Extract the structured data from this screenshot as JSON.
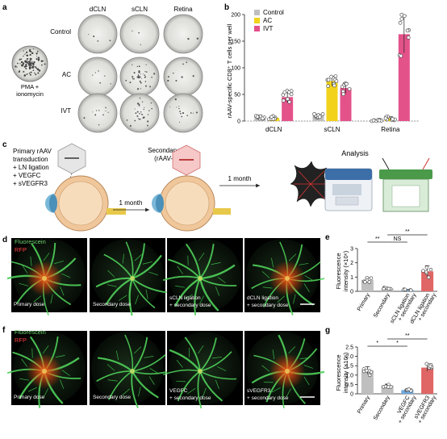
{
  "panel_labels": {
    "a": "a",
    "b": "b",
    "c": "c",
    "d": "d",
    "e": "e",
    "f": "f",
    "g": "g"
  },
  "panel_a": {
    "columns": [
      "dCLN",
      "sCLN",
      "Retina"
    ],
    "rows": [
      "Control",
      "AC",
      "IVT"
    ],
    "control_caption": [
      "PMA +",
      "ionomycin"
    ]
  },
  "chart_b": {
    "type": "bar",
    "ylabel": "rAAV-specific CD8⁺ T cells per well",
    "yticks": [
      "0",
      "50",
      "100",
      "150",
      "200"
    ],
    "ylim": [
      0,
      200
    ],
    "groups": [
      "dCLN",
      "sCLN",
      "Retina"
    ],
    "legend": [
      {
        "name": "Control",
        "color": "#bfbfbf"
      },
      {
        "name": "AC",
        "color": "#f2d21b"
      },
      {
        "name": "IVT",
        "color": "#e4528a"
      }
    ],
    "series": [
      {
        "name": "Control",
        "values": [
          8,
          10,
          1
        ],
        "errors": [
          3,
          3,
          1
        ]
      },
      {
        "name": "AC",
        "values": [
          6,
          75,
          5
        ],
        "errors": [
          3,
          9,
          3
        ]
      },
      {
        "name": "IVT",
        "values": [
          45,
          62,
          163
        ],
        "errors": [
          10,
          10,
          35
        ]
      }
    ]
  },
  "panel_c": {
    "left_text": [
      "Primary rAAV",
      "transduction",
      "+ LN ligation",
      "+ VEGFC",
      "+ sVEGFR3"
    ],
    "arrow1": "1 month",
    "secondary": [
      "Secondary dose",
      "(rAAV-RFP)"
    ],
    "arrow2": "1 month",
    "analysis": "Analysis"
  },
  "panel_d": {
    "legend_fluorescein": "Fluorescein",
    "legend_rfp": "RFP",
    "images": [
      [
        "Primary dose"
      ],
      [
        "Secondary dose"
      ],
      [
        "sCLN ligation",
        "+ secondary dose"
      ],
      [
        "dCLN ligation",
        "+ secondary dose"
      ]
    ]
  },
  "chart_e": {
    "type": "bar",
    "ylabel": [
      "Fluorescence",
      "intensity (×10⁶)"
    ],
    "yticks": [
      "0",
      "1",
      "2",
      "3"
    ],
    "ylim": [
      0,
      3
    ],
    "categories": [
      "Primary",
      "Secondary",
      "sCLN ligation + secondary",
      "dCLN ligation + secondary"
    ],
    "category_lines": [
      [
        "Primary"
      ],
      [
        "Secondary"
      ],
      [
        "sCLN ligation",
        "+ secondary"
      ],
      [
        "dCLN ligation",
        "+ secondary"
      ]
    ],
    "values": [
      0.8,
      0.2,
      0.1,
      1.4
    ],
    "errors": [
      0.15,
      0.05,
      0.03,
      0.4
    ],
    "colors": [
      "#bfbfbf",
      "#bfbfbf",
      "#6fa8dc",
      "#e06666"
    ],
    "annotations": [
      "**",
      "NS",
      "**"
    ]
  },
  "panel_f": {
    "legend_fluorescein": "Fluorescein",
    "legend_rfp": "RFP",
    "images": [
      [
        "Primary dose"
      ],
      [
        "Secondary dose"
      ],
      [
        "VEGFC",
        "+ secondary dose"
      ],
      [
        "sVEGFR3",
        "+ secondary dose"
      ]
    ]
  },
  "chart_g": {
    "type": "bar",
    "ylabel": [
      "Fluorescence",
      "intensity (×10⁶)"
    ],
    "yticks": [
      "0",
      "0.5",
      "1.0",
      "1.5",
      "2.0",
      "2.5"
    ],
    "ylim": [
      0,
      2.5
    ],
    "categories": [
      "Primary",
      "Secondary",
      "VEGFC + secondary",
      "sVEGFR3 + secondary"
    ],
    "category_lines": [
      [
        "Primary"
      ],
      [
        "Secondary"
      ],
      [
        "VEGFC",
        "+ secondary"
      ],
      [
        "sVEGFR3",
        "+ secondary"
      ]
    ],
    "values": [
      1.25,
      0.45,
      0.2,
      1.4
    ],
    "errors": [
      0.2,
      0.07,
      0.04,
      0.2
    ],
    "colors": [
      "#bfbfbf",
      "#bfbfbf",
      "#6fa8dc",
      "#e06666"
    ],
    "annotations": [
      "*",
      "*",
      "**"
    ]
  }
}
